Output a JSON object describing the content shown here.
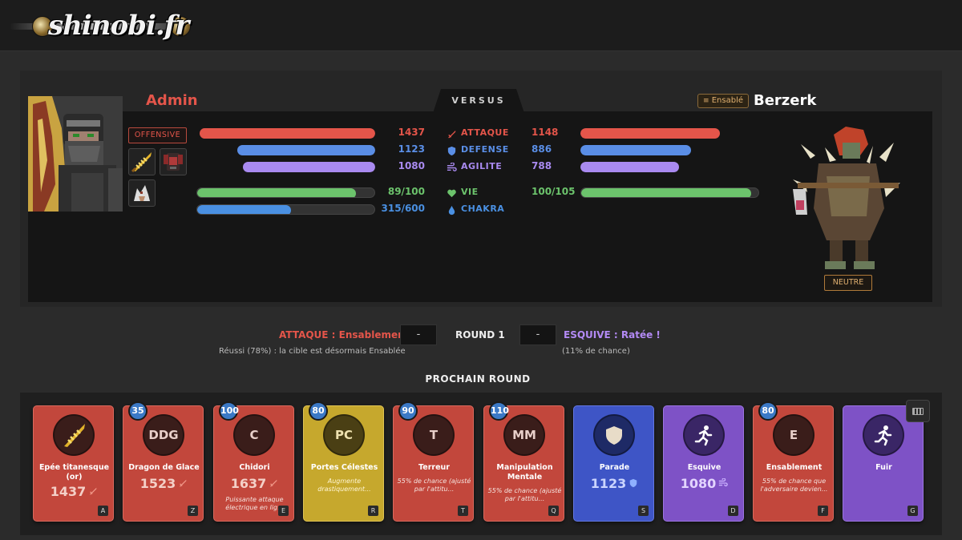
{
  "site": {
    "logo_text": "shinobi.fr"
  },
  "versus_label": "VERSUS",
  "player": {
    "name": "Admin",
    "stance": "OFFENSIVE",
    "color": "#e4554a"
  },
  "opponent": {
    "name": "Berzerk",
    "status_badge": "Ensablé",
    "stance": "NEUTRE"
  },
  "stats": [
    {
      "label": "ATTAQUE",
      "icon": "sword-icon",
      "player_text": "1437",
      "opponent_text": "1148",
      "player_fill": 0.98,
      "opponent_fill": 0.78,
      "color": "#e4554a"
    },
    {
      "label": "DEFENSE",
      "icon": "shield-icon",
      "player_text": "1123",
      "opponent_text": "886",
      "player_fill": 0.77,
      "opponent_fill": 0.62,
      "color": "#5a8ee6"
    },
    {
      "label": "AGILITE",
      "icon": "wind-icon",
      "player_text": "1080",
      "opponent_text": "788",
      "player_fill": 0.74,
      "opponent_fill": 0.55,
      "color": "#a98af0"
    },
    {
      "label": "VIE",
      "icon": "heart-icon",
      "player_text": "89/100",
      "opponent_text": "100/105",
      "player_fill": 0.89,
      "opponent_fill": 0.952,
      "color": "#6cc36c"
    },
    {
      "label": "CHAKRA",
      "icon": "drop-icon",
      "player_text": "315/600",
      "opponent_text": "",
      "player_fill": 0.525,
      "opponent_fill": null,
      "color": "#4a90e2"
    }
  ],
  "round": {
    "label": "ROUND 1",
    "attack_text": "ATTAQUE : Ensablement II",
    "attack_value": "-",
    "dodge_text": "ESQUIVE : Ratée !",
    "dodge_value": "-",
    "attack_note": "Réussi (78%) : la cible est désormais Ensablée",
    "dodge_note": "(11% de chance)"
  },
  "next_round_label": "PROCHAIN ROUND",
  "actions": [
    {
      "title": "Epée titanesque (or)",
      "cost": "",
      "circle": "",
      "power": "1437",
      "power_icon": "sword-icon",
      "desc": "",
      "key": "A",
      "color": "red"
    },
    {
      "title": "Dragon de Glace",
      "cost": "35",
      "circle": "DDG",
      "power": "1523",
      "power_icon": "sword-icon",
      "desc": "",
      "key": "Z",
      "color": "red"
    },
    {
      "title": "Chidori",
      "cost": "100",
      "circle": "C",
      "power": "1637",
      "power_icon": "sword-icon",
      "desc": "Puissante attaque électrique en lig...",
      "key": "E",
      "color": "red"
    },
    {
      "title": "Portes Célestes",
      "cost": "80",
      "circle": "PC",
      "power": "",
      "power_icon": "",
      "desc": "Augmente drastiquement...",
      "key": "R",
      "color": "yellow"
    },
    {
      "title": "Terreur",
      "cost": "90",
      "circle": "T",
      "power": "",
      "power_icon": "",
      "desc": "55% de chance (ajusté par l'attitu...",
      "key": "T",
      "color": "red"
    },
    {
      "title": "Manipulation Mentale",
      "cost": "110",
      "circle": "MM",
      "power": "",
      "power_icon": "",
      "desc": "55% de chance (ajusté par l'attitu...",
      "key": "Q",
      "color": "red"
    },
    {
      "title": "Parade",
      "cost": "",
      "circle": "",
      "power": "1123",
      "power_icon": "shield-icon",
      "desc": "",
      "key": "S",
      "color": "blue"
    },
    {
      "title": "Esquive",
      "cost": "",
      "circle": "",
      "power": "1080",
      "power_icon": "wind-icon",
      "desc": "",
      "key": "D",
      "color": "purple"
    },
    {
      "title": "Ensablement",
      "cost": "80",
      "circle": "E",
      "power": "",
      "power_icon": "",
      "desc": "55% de chance que l'adversaire devien...",
      "key": "F",
      "color": "red"
    },
    {
      "title": "Fuir",
      "cost": "",
      "circle": "",
      "power": "",
      "power_icon": "",
      "desc": "",
      "key": "G",
      "color": "purple"
    }
  ]
}
